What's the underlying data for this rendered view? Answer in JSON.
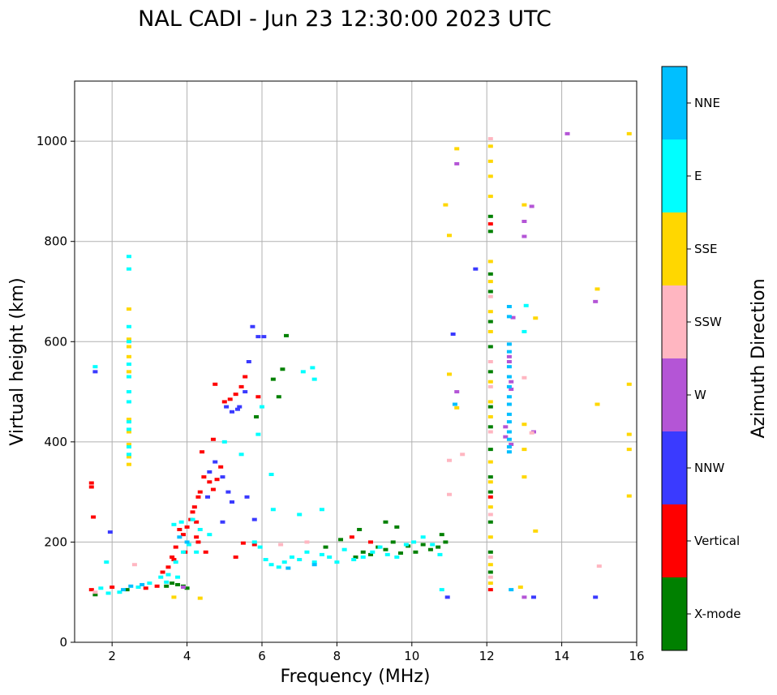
{
  "chart_data": {
    "type": "scatter",
    "title": "NAL CADI - Jun 23 12:30:00 2023 UTC",
    "xlabel": "Frequency (MHz)",
    "ylabel": "Virtual height (km)",
    "xlim": [
      1.0,
      16.0
    ],
    "ylim": [
      0,
      1120
    ],
    "xticks": [
      2,
      4,
      6,
      8,
      10,
      12,
      14,
      16
    ],
    "yticks": [
      0,
      200,
      400,
      600,
      800,
      1000
    ],
    "xtick_labels": [
      "2",
      "4",
      "6",
      "8",
      "10",
      "12",
      "14",
      "16"
    ],
    "ytick_labels": [
      "0",
      "200",
      "400",
      "600",
      "800",
      "1000"
    ],
    "grid": true,
    "colorbar": {
      "title": "Azimuth Direction",
      "categories": [
        {
          "name": "X-mode",
          "color": "#008000"
        },
        {
          "name": "Vertical",
          "color": "#ff0000"
        },
        {
          "name": "NNW",
          "color": "#3a3aff"
        },
        {
          "name": "W",
          "color": "#b455d6"
        },
        {
          "name": "SSW",
          "color": "#ffb6c1"
        },
        {
          "name": "SSE",
          "color": "#ffd700"
        },
        {
          "name": "E",
          "color": "#00ffff"
        },
        {
          "name": "NNE",
          "color": "#00bfff"
        }
      ]
    },
    "series": [
      {
        "name": "X-mode",
        "points": [
          [
            3.45,
            112
          ],
          [
            3.6,
            118
          ],
          [
            3.75,
            115
          ],
          [
            3.9,
            112
          ],
          [
            4.0,
            108
          ],
          [
            2.4,
            105
          ],
          [
            6.45,
            490
          ],
          [
            5.85,
            450
          ],
          [
            6.3,
            525
          ],
          [
            6.55,
            545
          ],
          [
            6.65,
            612
          ],
          [
            8.5,
            170
          ],
          [
            8.7,
            180
          ],
          [
            8.9,
            175
          ],
          [
            9.1,
            190
          ],
          [
            9.3,
            185
          ],
          [
            9.5,
            200
          ],
          [
            9.7,
            178
          ],
          [
            9.9,
            192
          ],
          [
            10.1,
            180
          ],
          [
            10.3,
            195
          ],
          [
            10.5,
            185
          ],
          [
            10.7,
            190
          ],
          [
            10.8,
            215
          ],
          [
            10.9,
            200
          ],
          [
            9.3,
            240
          ],
          [
            9.6,
            230
          ],
          [
            8.6,
            225
          ],
          [
            8.1,
            205
          ],
          [
            7.7,
            190
          ],
          [
            12.1,
            850
          ],
          [
            12.1,
            820
          ],
          [
            12.1,
            735
          ],
          [
            12.1,
            700
          ],
          [
            12.1,
            640
          ],
          [
            12.1,
            590
          ],
          [
            12.1,
            540
          ],
          [
            12.1,
            470
          ],
          [
            12.1,
            430
          ],
          [
            12.1,
            385
          ],
          [
            12.1,
            330
          ],
          [
            12.1,
            300
          ],
          [
            12.1,
            240
          ],
          [
            12.1,
            180
          ],
          [
            12.1,
            140
          ],
          [
            1.55,
            95
          ]
        ]
      },
      {
        "name": "Vertical",
        "points": [
          [
            1.45,
            318
          ],
          [
            1.45,
            310
          ],
          [
            1.5,
            250
          ],
          [
            1.45,
            105
          ],
          [
            2.0,
            110
          ],
          [
            2.9,
            108
          ],
          [
            3.2,
            112
          ],
          [
            3.35,
            140
          ],
          [
            3.5,
            150
          ],
          [
            3.65,
            165
          ],
          [
            3.8,
            225
          ],
          [
            3.9,
            215
          ],
          [
            4.0,
            230
          ],
          [
            4.1,
            245
          ],
          [
            4.15,
            260
          ],
          [
            4.2,
            270
          ],
          [
            4.25,
            240
          ],
          [
            4.3,
            290
          ],
          [
            4.35,
            300
          ],
          [
            4.45,
            330
          ],
          [
            4.6,
            320
          ],
          [
            4.7,
            305
          ],
          [
            4.8,
            325
          ],
          [
            4.9,
            350
          ],
          [
            4.4,
            380
          ],
          [
            4.7,
            405
          ],
          [
            4.25,
            210
          ],
          [
            4.3,
            200
          ],
          [
            4.5,
            180
          ],
          [
            3.7,
            190
          ],
          [
            3.6,
            170
          ],
          [
            3.95,
            180
          ],
          [
            5.0,
            480
          ],
          [
            5.15,
            485
          ],
          [
            5.3,
            495
          ],
          [
            5.45,
            510
          ],
          [
            5.55,
            530
          ],
          [
            4.75,
            515
          ],
          [
            5.9,
            490
          ],
          [
            8.4,
            210
          ],
          [
            8.9,
            200
          ],
          [
            12.1,
            105
          ],
          [
            12.1,
            290
          ],
          [
            12.1,
            835
          ],
          [
            5.5,
            198
          ],
          [
            5.8,
            195
          ],
          [
            5.3,
            170
          ]
        ]
      },
      {
        "name": "NNW",
        "points": [
          [
            1.55,
            540
          ],
          [
            1.95,
            220
          ],
          [
            4.6,
            340
          ],
          [
            4.75,
            360
          ],
          [
            4.95,
            330
          ],
          [
            5.1,
            300
          ],
          [
            5.2,
            280
          ],
          [
            4.55,
            290
          ],
          [
            5.05,
            470
          ],
          [
            5.2,
            460
          ],
          [
            5.35,
            465
          ],
          [
            5.4,
            470
          ],
          [
            5.55,
            500
          ],
          [
            5.65,
            560
          ],
          [
            5.75,
            630
          ],
          [
            5.9,
            610
          ],
          [
            6.05,
            610
          ],
          [
            11.1,
            615
          ],
          [
            10.95,
            90
          ],
          [
            11.7,
            745
          ],
          [
            13.25,
            90
          ],
          [
            14.9,
            90
          ],
          [
            5.6,
            290
          ],
          [
            5.8,
            245
          ],
          [
            4.95,
            240
          ]
        ]
      },
      {
        "name": "W",
        "points": [
          [
            12.5,
            430
          ],
          [
            12.5,
            410
          ],
          [
            12.65,
            395
          ],
          [
            12.6,
            570
          ],
          [
            12.6,
            560
          ],
          [
            12.65,
            520
          ],
          [
            12.65,
            505
          ],
          [
            12.7,
            648
          ],
          [
            13.0,
            810
          ],
          [
            13.0,
            840
          ],
          [
            13.2,
            870
          ],
          [
            13.25,
            420
          ],
          [
            13.0,
            90
          ],
          [
            11.2,
            955
          ],
          [
            11.2,
            500
          ],
          [
            14.15,
            1015
          ],
          [
            14.9,
            680
          ],
          [
            3.9,
            110
          ]
        ]
      },
      {
        "name": "SSW",
        "points": [
          [
            1.55,
            100
          ],
          [
            2.6,
            155
          ],
          [
            11.35,
            375
          ],
          [
            11.0,
            363
          ],
          [
            11.0,
            295
          ],
          [
            12.1,
            1005
          ],
          [
            12.1,
            690
          ],
          [
            12.1,
            560
          ],
          [
            12.1,
            510
          ],
          [
            12.1,
            420
          ],
          [
            12.1,
            255
          ],
          [
            12.1,
            170
          ],
          [
            12.1,
            130
          ],
          [
            13.0,
            528
          ],
          [
            13.2,
            418
          ],
          [
            15.0,
            152
          ],
          [
            6.5,
            195
          ],
          [
            7.2,
            200
          ]
        ]
      },
      {
        "name": "SSE",
        "points": [
          [
            2.45,
            665
          ],
          [
            2.45,
            605
          ],
          [
            2.45,
            590
          ],
          [
            2.45,
            570
          ],
          [
            2.45,
            540
          ],
          [
            2.45,
            445
          ],
          [
            2.45,
            420
          ],
          [
            2.45,
            395
          ],
          [
            2.45,
            370
          ],
          [
            2.45,
            355
          ],
          [
            3.65,
            90
          ],
          [
            4.35,
            88
          ],
          [
            10.9,
            873
          ],
          [
            11.0,
            812
          ],
          [
            11.0,
            535
          ],
          [
            11.2,
            468
          ],
          [
            11.2,
            985
          ],
          [
            12.1,
            990
          ],
          [
            12.1,
            960
          ],
          [
            12.1,
            930
          ],
          [
            12.1,
            890
          ],
          [
            12.1,
            760
          ],
          [
            12.1,
            720
          ],
          [
            12.1,
            660
          ],
          [
            12.1,
            620
          ],
          [
            12.1,
            520
          ],
          [
            12.1,
            480
          ],
          [
            12.1,
            450
          ],
          [
            12.1,
            360
          ],
          [
            12.1,
            320
          ],
          [
            12.1,
            270
          ],
          [
            12.1,
            210
          ],
          [
            12.1,
            155
          ],
          [
            12.1,
            118
          ],
          [
            12.9,
            110
          ],
          [
            13.0,
            435
          ],
          [
            13.0,
            385
          ],
          [
            13.0,
            330
          ],
          [
            13.3,
            222
          ],
          [
            13.3,
            647
          ],
          [
            13.0,
            873
          ],
          [
            14.95,
            705
          ],
          [
            14.95,
            475
          ],
          [
            15.8,
            1015
          ],
          [
            15.8,
            515
          ],
          [
            15.8,
            415
          ],
          [
            15.8,
            385
          ],
          [
            15.8,
            292
          ]
        ]
      },
      {
        "name": "E",
        "points": [
          [
            1.55,
            550
          ],
          [
            1.7,
            108
          ],
          [
            1.9,
            98
          ],
          [
            2.45,
            770
          ],
          [
            2.45,
            745
          ],
          [
            2.45,
            630
          ],
          [
            2.45,
            600
          ],
          [
            2.45,
            555
          ],
          [
            2.45,
            530
          ],
          [
            2.45,
            500
          ],
          [
            2.45,
            480
          ],
          [
            2.45,
            440
          ],
          [
            2.45,
            425
          ],
          [
            2.45,
            390
          ],
          [
            2.45,
            375
          ],
          [
            1.85,
            160
          ],
          [
            2.2,
            100
          ],
          [
            2.7,
            110
          ],
          [
            3.0,
            118
          ],
          [
            3.3,
            130
          ],
          [
            3.5,
            135
          ],
          [
            3.7,
            160
          ],
          [
            3.9,
            180
          ],
          [
            3.65,
            235
          ],
          [
            3.85,
            240
          ],
          [
            4.15,
            245
          ],
          [
            4.35,
            225
          ],
          [
            4.6,
            215
          ],
          [
            4.25,
            180
          ],
          [
            4.05,
            195
          ],
          [
            5.8,
            200
          ],
          [
            5.95,
            190
          ],
          [
            6.1,
            165
          ],
          [
            6.25,
            155
          ],
          [
            6.45,
            150
          ],
          [
            6.6,
            160
          ],
          [
            6.8,
            170
          ],
          [
            7.0,
            165
          ],
          [
            7.2,
            180
          ],
          [
            7.4,
            160
          ],
          [
            7.6,
            175
          ],
          [
            7.8,
            170
          ],
          [
            8.0,
            160
          ],
          [
            8.2,
            185
          ],
          [
            8.45,
            165
          ],
          [
            8.7,
            170
          ],
          [
            8.95,
            180
          ],
          [
            9.15,
            190
          ],
          [
            9.35,
            175
          ],
          [
            9.6,
            170
          ],
          [
            9.85,
            195
          ],
          [
            10.05,
            200
          ],
          [
            10.3,
            210
          ],
          [
            10.55,
            195
          ],
          [
            10.75,
            175
          ],
          [
            10.8,
            105
          ],
          [
            7.0,
            255
          ],
          [
            7.6,
            265
          ],
          [
            6.3,
            265
          ],
          [
            6.25,
            335
          ],
          [
            5.0,
            400
          ],
          [
            5.45,
            375
          ],
          [
            5.9,
            415
          ],
          [
            7.1,
            540
          ],
          [
            7.35,
            548
          ],
          [
            7.4,
            525
          ],
          [
            6.0,
            470
          ],
          [
            13.05,
            672
          ],
          [
            13.0,
            620
          ],
          [
            3.45,
            120
          ],
          [
            3.75,
            130
          ]
        ]
      },
      {
        "name": "NNE",
        "points": [
          [
            12.6,
            670
          ],
          [
            12.6,
            650
          ],
          [
            12.6,
            595
          ],
          [
            12.6,
            580
          ],
          [
            12.6,
            550
          ],
          [
            12.6,
            530
          ],
          [
            12.6,
            510
          ],
          [
            12.6,
            490
          ],
          [
            12.6,
            475
          ],
          [
            12.6,
            455
          ],
          [
            12.6,
            440
          ],
          [
            12.6,
            420
          ],
          [
            12.6,
            405
          ],
          [
            12.6,
            390
          ],
          [
            12.6,
            380
          ],
          [
            11.15,
            475
          ],
          [
            12.65,
            105
          ],
          [
            2.3,
            105
          ],
          [
            2.5,
            112
          ],
          [
            2.8,
            115
          ],
          [
            3.8,
            210
          ],
          [
            4.0,
            200
          ],
          [
            6.7,
            148
          ],
          [
            7.4,
            155
          ]
        ]
      }
    ]
  }
}
